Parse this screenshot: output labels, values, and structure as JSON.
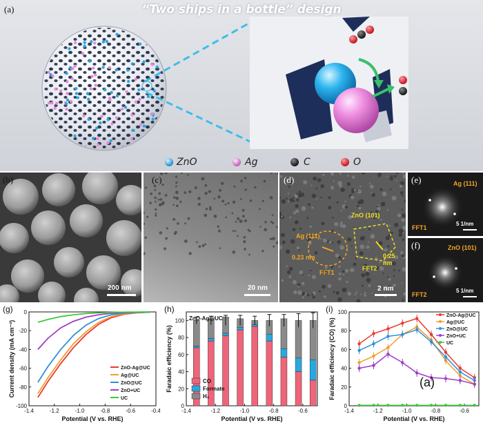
{
  "top": {
    "label": "(a)",
    "title": "“Two ships in a bottle” design",
    "legend": [
      {
        "name": "ZnO",
        "color": "#29a8e0",
        "icon": "zno-sphere-icon"
      },
      {
        "name": "Ag",
        "color": "#e88ad8",
        "icon": "ag-sphere-icon"
      },
      {
        "name": "C",
        "color": "#2a2a2a",
        "icon": "carbon-atom-icon"
      },
      {
        "name": "O",
        "color": "#e0202a",
        "icon": "oxygen-atom-icon"
      }
    ]
  },
  "micro": {
    "b": {
      "label": "(b)",
      "scale": "200 nm"
    },
    "c": {
      "label": "(c)",
      "scale": "20 nm"
    },
    "d": {
      "label": "(d)",
      "scale": "2 nm",
      "zno": "ZnO (101)",
      "ag": "Ag (111)",
      "d1": "0.23 nm",
      "d2": "0.25 nm",
      "fft1": "FFT1",
      "fft2": "FFT2"
    },
    "e": {
      "label": "(e)",
      "tag": "Ag (111)",
      "fft": "FFT1",
      "scale": "5 1/nm"
    },
    "f": {
      "label": "(f)",
      "tag": "ZnO (101)",
      "fft": "FFT2",
      "scale": "5 1/nm"
    }
  },
  "chart_data": [
    {
      "type": "line",
      "panel": "(g)",
      "xlabel": "Potential (V vs. RHE)",
      "ylabel": "Current density (mA cm⁻²)",
      "xlim": [
        -1.4,
        -0.4
      ],
      "ylim": [
        -100,
        0
      ],
      "xticks": [
        "-1.4",
        "-1.2",
        "-1.0",
        "-0.8",
        "-0.6",
        "-0.4"
      ],
      "yticks": [
        "0",
        "-20",
        "-40",
        "-60",
        "-80",
        "-100"
      ],
      "legend_position": "bottom-right",
      "series": [
        {
          "name": "ZnO-Ag@UC",
          "color": "#e8382e",
          "x": [
            -1.33,
            -1.25,
            -1.15,
            -1.05,
            -0.95,
            -0.85,
            -0.75,
            -0.65,
            -0.55,
            -0.45
          ],
          "y": [
            -91,
            -74,
            -55,
            -38,
            -24,
            -13,
            -6,
            -2.5,
            -1,
            -0.3
          ]
        },
        {
          "name": "Ag@UC",
          "color": "#f49b2c",
          "x": [
            -1.33,
            -1.25,
            -1.15,
            -1.05,
            -0.95,
            -0.85,
            -0.75,
            -0.65,
            -0.55,
            -0.45
          ],
          "y": [
            -87,
            -70,
            -51,
            -34,
            -21,
            -11,
            -5,
            -2,
            -0.8,
            -0.3
          ]
        },
        {
          "name": "ZnO@UC",
          "color": "#2f8fd8",
          "x": [
            -1.33,
            -1.25,
            -1.15,
            -1.05,
            -0.95,
            -0.85,
            -0.75,
            -0.65,
            -0.55,
            -0.45
          ],
          "y": [
            -75,
            -58,
            -40,
            -25,
            -14,
            -7,
            -3,
            -1.2,
            -0.5,
            -0.2
          ]
        },
        {
          "name": "ZnO+UC",
          "color": "#a03cc8",
          "x": [
            -1.33,
            -1.25,
            -1.15,
            -1.05,
            -0.95,
            -0.85,
            -0.75,
            -0.65,
            -0.55,
            -0.45
          ],
          "y": [
            -40,
            -28,
            -17,
            -10,
            -5.5,
            -3,
            -1.5,
            -0.7,
            -0.3,
            -0.1
          ]
        },
        {
          "name": "UC",
          "color": "#3cc83c",
          "x": [
            -1.33,
            -1.25,
            -1.15,
            -1.05,
            -0.95,
            -0.85,
            -0.75,
            -0.65,
            -0.55,
            -0.45
          ],
          "y": [
            -11,
            -8,
            -5,
            -3,
            -1.8,
            -1,
            -0.5,
            -0.2,
            -0.1,
            0
          ]
        }
      ]
    },
    {
      "type": "bar",
      "panel": "(h)",
      "title": "ZnO-Ag@UC",
      "xlabel": "Potential (V vs. RHE)",
      "ylabel": "Faradaic efficiency (%)",
      "xlim": [
        -1.4,
        -0.5
      ],
      "ylim": [
        0,
        110
      ],
      "xticks": [
        "-1.4",
        "-1.2",
        "-1.0",
        "-0.8",
        "-0.6"
      ],
      "yticks": [
        "0",
        "20",
        "40",
        "60",
        "80",
        "100"
      ],
      "legend_position": "bottom-left",
      "x": [
        -1.33,
        -1.23,
        -1.13,
        -1.03,
        -0.93,
        -0.83,
        -0.73,
        -0.63,
        -0.53
      ],
      "series": [
        {
          "name": "CO",
          "color": "#f0647a",
          "values": [
            68,
            76,
            82,
            89,
            93,
            76,
            57,
            40,
            30
          ]
        },
        {
          "name": "Formate",
          "color": "#29a8e0",
          "values": [
            2,
            3,
            3,
            3,
            2,
            8,
            10,
            16,
            24
          ]
        },
        {
          "name": "H₂",
          "color": "#8a8a8a",
          "values": [
            30,
            23,
            19,
            10,
            5,
            16,
            35,
            44,
            46
          ]
        }
      ],
      "errors": [
        4,
        5,
        6,
        6,
        5,
        7,
        7,
        8,
        9
      ]
    },
    {
      "type": "line",
      "panel": "(i)",
      "xlabel": "Potential (V vs. RHE)",
      "ylabel": "Faradaic efficiency (CO) (%)",
      "xlim": [
        -1.4,
        -0.5
      ],
      "ylim": [
        0,
        100
      ],
      "xticks": [
        "-1.4",
        "-1.2",
        "-1.0",
        "-0.8",
        "-0.6"
      ],
      "yticks": [
        "0",
        "20",
        "40",
        "60",
        "80",
        "100"
      ],
      "legend_position": "top-right",
      "annotation": "(a)",
      "series": [
        {
          "name": "ZnO-Ag@UC",
          "color": "#e8382e",
          "x": [
            -1.33,
            -1.23,
            -1.13,
            -1.03,
            -0.93,
            -0.83,
            -0.73,
            -0.63,
            -0.53
          ],
          "y": [
            66,
            77,
            82,
            88,
            93,
            76,
            57,
            40,
            30
          ]
        },
        {
          "name": "Ag@UC",
          "color": "#f49b2c",
          "x": [
            -1.33,
            -1.23,
            -1.13,
            -1.03,
            -0.93,
            -0.83,
            -0.73,
            -0.63,
            -0.53
          ],
          "y": [
            46,
            53,
            62,
            76,
            84,
            70,
            48,
            32,
            23
          ]
        },
        {
          "name": "ZnO@UC",
          "color": "#2f8fd8",
          "x": [
            -1.33,
            -1.23,
            -1.13,
            -1.03,
            -0.93,
            -0.83,
            -0.73,
            -0.63,
            -0.53
          ],
          "y": [
            59,
            66,
            74,
            76,
            81,
            68,
            52,
            36,
            27
          ]
        },
        {
          "name": "ZnO+UC",
          "color": "#a03cc8",
          "x": [
            -1.33,
            -1.23,
            -1.13,
            -1.03,
            -0.93,
            -0.83,
            -0.73,
            -0.63,
            -0.53
          ],
          "y": [
            40,
            43,
            55,
            46,
            35,
            30,
            29,
            27,
            23
          ]
        },
        {
          "name": "UC",
          "color": "#3cc83c",
          "x": [
            -1.33,
            -1.23,
            -1.13,
            -1.03,
            -0.93,
            -0.83,
            -0.73,
            -0.63,
            -0.53
          ],
          "y": [
            0.5,
            0.5,
            0.5,
            0.5,
            0.5,
            0.5,
            0.5,
            0.5,
            0.5
          ]
        }
      ]
    }
  ]
}
